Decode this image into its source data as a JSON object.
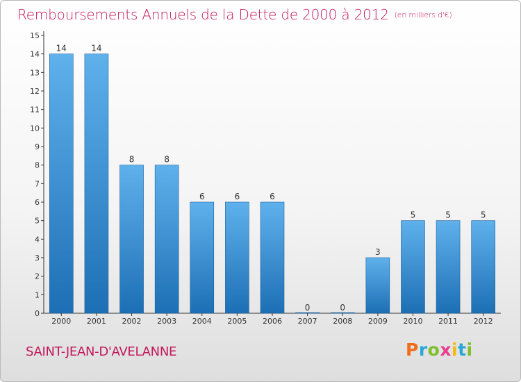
{
  "title": "Remboursements Annuels de la Dette de 2000 à 2012",
  "subtitle": "(en milliers d'€)",
  "commune": "SAINT-JEAN-D'AVELANNE",
  "brand": {
    "letters": [
      "P",
      "r",
      "o",
      "x",
      "i",
      "t",
      "i"
    ]
  },
  "colors": {
    "title": "#c2185b",
    "bar_top": "#5fb1ec",
    "bar_bottom": "#1d6fb5",
    "axis": "#333333"
  },
  "chart_data": {
    "type": "bar",
    "title": "Remboursements Annuels de la Dette de 2000 à 2012",
    "subtitle": "(en milliers d'€)",
    "categories": [
      "2000",
      "2001",
      "2002",
      "2003",
      "2004",
      "2005",
      "2006",
      "2007",
      "2008",
      "2009",
      "2010",
      "2011",
      "2012"
    ],
    "values": [
      14,
      14,
      8,
      8,
      6,
      6,
      6,
      0,
      0,
      3,
      5,
      5,
      5
    ],
    "data_labels": [
      "14",
      "14",
      "8",
      "8",
      "6",
      "6",
      "6",
      "0",
      "0",
      "3",
      "5",
      "5",
      "5"
    ],
    "y_ticks": [
      "0",
      "1",
      "2",
      "3",
      "4",
      "5",
      "6",
      "7",
      "8",
      "9",
      "10",
      "11",
      "12",
      "13",
      "14",
      "15"
    ],
    "ylim": [
      0,
      15
    ],
    "xlabel": "",
    "ylabel": "",
    "grid": false,
    "legend": "none"
  }
}
